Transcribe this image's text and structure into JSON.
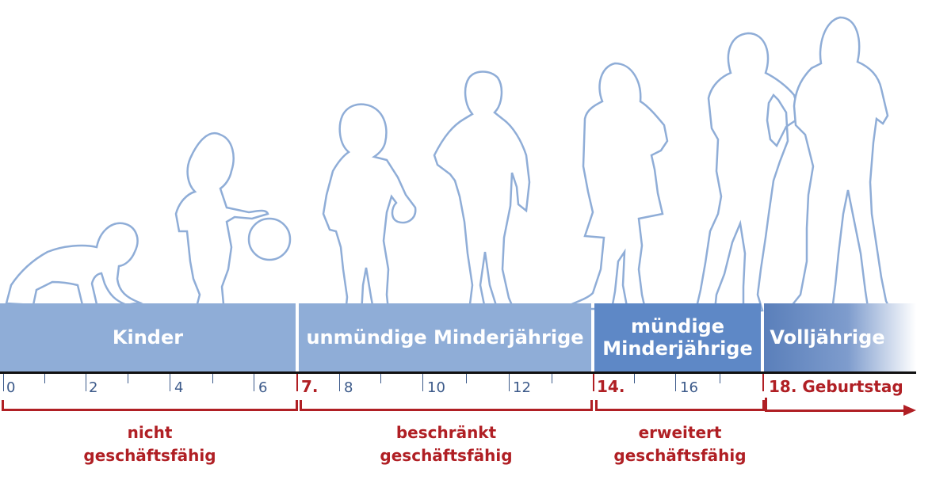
{
  "bands": [
    {
      "label": "Kinder"
    },
    {
      "label": "unmündige Minderjährige"
    },
    {
      "label": "mündige\nMinderjährige"
    },
    {
      "label": "Volljährige"
    }
  ],
  "ticks": [
    "0",
    "2",
    "4",
    "6",
    "7.",
    "8",
    "10",
    "12",
    "14.",
    "16",
    "18. Geburtstag"
  ],
  "captions": [
    {
      "label": "nicht\ngeschäftsfähig"
    },
    {
      "label": "beschränkt\ngeschäftsfähig"
    },
    {
      "label": "erweitert\ngeschäftsfähig"
    }
  ],
  "colors": {
    "band_light": "#8fadd7",
    "band_dark": "#5e88c6",
    "accent_red": "#b01f24",
    "tick_blue": "#3c5a8a"
  }
}
